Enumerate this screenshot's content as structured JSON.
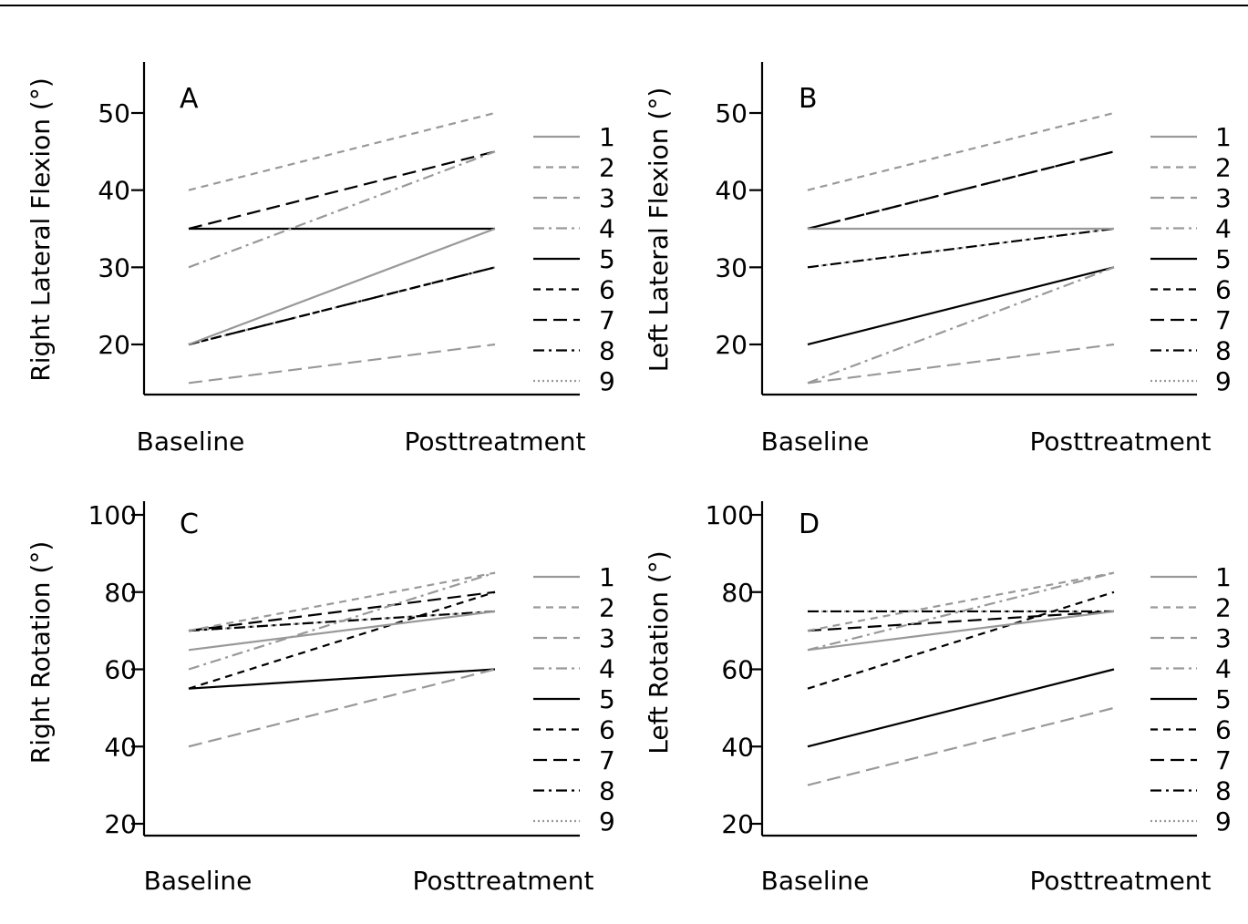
{
  "chart_data": [
    {
      "type": "line",
      "panel_label": "A",
      "ylabel": "Right Lateral Flexion (°)",
      "categories": [
        "Baseline",
        "Posttreatment"
      ],
      "ylim": [
        13.5,
        56
      ],
      "yticks": [
        20,
        30,
        40,
        50
      ],
      "legend_position": "right",
      "series": [
        {
          "name": "1",
          "values": [
            20,
            35
          ]
        },
        {
          "name": "2",
          "values": [
            40,
            50
          ]
        },
        {
          "name": "3",
          "values": [
            15,
            20
          ]
        },
        {
          "name": "4",
          "values": [
            30,
            45
          ]
        },
        {
          "name": "5",
          "values": [
            35,
            35
          ]
        },
        {
          "name": "6",
          "values": [
            20,
            30
          ]
        },
        {
          "name": "7",
          "values": [
            35,
            45
          ]
        },
        {
          "name": "8",
          "values": [
            20,
            30
          ]
        },
        {
          "name": "9",
          "values": [
            20,
            30
          ]
        }
      ]
    },
    {
      "type": "line",
      "panel_label": "B",
      "ylabel": "Left Lateral Flexion (°)",
      "categories": [
        "Baseline",
        "Posttreatment"
      ],
      "ylim": [
        13.5,
        56
      ],
      "yticks": [
        20,
        30,
        40,
        50
      ],
      "legend_position": "right",
      "series": [
        {
          "name": "1",
          "values": [
            35,
            35
          ]
        },
        {
          "name": "2",
          "values": [
            40,
            50
          ]
        },
        {
          "name": "3",
          "values": [
            15,
            20
          ]
        },
        {
          "name": "4",
          "values": [
            15,
            30
          ]
        },
        {
          "name": "5",
          "values": [
            20,
            30
          ]
        },
        {
          "name": "6",
          "values": [
            35,
            45
          ]
        },
        {
          "name": "7",
          "values": [
            35,
            45
          ]
        },
        {
          "name": "8",
          "values": [
            30,
            35
          ]
        },
        {
          "name": "9",
          "values": [
            30,
            35
          ]
        }
      ]
    },
    {
      "type": "line",
      "panel_label": "C",
      "ylabel": "Right Rotation (°)",
      "categories": [
        "Baseline",
        "Posttreatment"
      ],
      "ylim": [
        17,
        103
      ],
      "yticks": [
        20,
        40,
        60,
        80,
        100
      ],
      "legend_position": "right",
      "series": [
        {
          "name": "1",
          "values": [
            65,
            75
          ]
        },
        {
          "name": "2",
          "values": [
            70,
            85
          ]
        },
        {
          "name": "3",
          "values": [
            40,
            60
          ]
        },
        {
          "name": "4",
          "values": [
            60,
            85
          ]
        },
        {
          "name": "5",
          "values": [
            55,
            60
          ]
        },
        {
          "name": "6",
          "values": [
            55,
            80
          ]
        },
        {
          "name": "7",
          "values": [
            70,
            80
          ]
        },
        {
          "name": "8",
          "values": [
            70,
            75
          ]
        },
        {
          "name": "9",
          "values": [
            70,
            75
          ]
        }
      ]
    },
    {
      "type": "line",
      "panel_label": "D",
      "ylabel": "Left Rotation (°)",
      "categories": [
        "Baseline",
        "Posttreatment"
      ],
      "ylim": [
        17,
        103
      ],
      "yticks": [
        20,
        40,
        60,
        80,
        100
      ],
      "legend_position": "right",
      "series": [
        {
          "name": "1",
          "values": [
            65,
            75
          ]
        },
        {
          "name": "2",
          "values": [
            70,
            85
          ]
        },
        {
          "name": "3",
          "values": [
            30,
            50
          ]
        },
        {
          "name": "4",
          "values": [
            65,
            85
          ]
        },
        {
          "name": "5",
          "values": [
            40,
            60
          ]
        },
        {
          "name": "6",
          "values": [
            55,
            80
          ]
        },
        {
          "name": "7",
          "values": [
            70,
            75
          ]
        },
        {
          "name": "8",
          "values": [
            75,
            75
          ]
        },
        {
          "name": "9",
          "values": [
            75,
            75
          ]
        }
      ]
    }
  ],
  "series_styles": [
    {
      "name": "1",
      "color": "#999999",
      "dash": "solid"
    },
    {
      "name": "2",
      "color": "#999999",
      "dash": "short-dash"
    },
    {
      "name": "3",
      "color": "#999999",
      "dash": "long-dash"
    },
    {
      "name": "4",
      "color": "#999999",
      "dash": "dash-dot"
    },
    {
      "name": "5",
      "color": "#000000",
      "dash": "solid"
    },
    {
      "name": "6",
      "color": "#000000",
      "dash": "short-dash"
    },
    {
      "name": "7",
      "color": "#000000",
      "dash": "long-dash"
    },
    {
      "name": "8",
      "color": "#000000",
      "dash": "dash-dot"
    },
    {
      "name": "9",
      "color": "#999999",
      "dash": "dotted"
    }
  ]
}
